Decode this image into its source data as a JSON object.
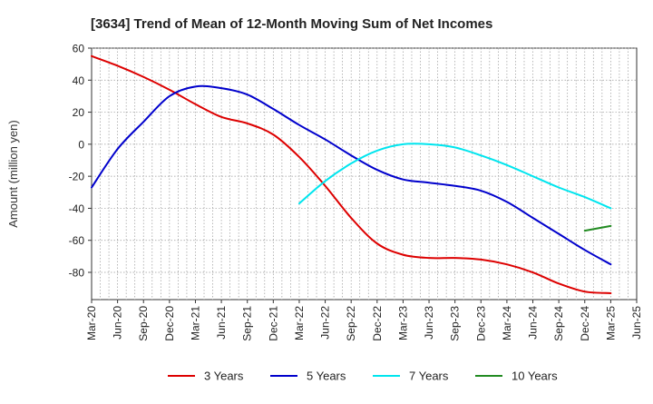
{
  "chart_data": {
    "type": "line",
    "title": "[3634]  Trend of Mean of 12-Month Moving Sum of Net Incomes",
    "ylabel": "Amount (million yen)",
    "xlabel": "",
    "ylim": [
      -97,
      60
    ],
    "yticks": [
      60,
      40,
      20,
      0,
      -20,
      -40,
      -60,
      -80
    ],
    "xticks": [
      "Mar-20",
      "Jun-20",
      "Sep-20",
      "Dec-20",
      "Mar-21",
      "Jun-21",
      "Sep-21",
      "Dec-21",
      "Mar-22",
      "Jun-22",
      "Sep-22",
      "Dec-22",
      "Mar-23",
      "Jun-23",
      "Sep-23",
      "Dec-23",
      "Mar-24",
      "Jun-24",
      "Sep-24",
      "Dec-24",
      "Mar-25",
      "Jun-25"
    ],
    "grid": true,
    "legend_position": "bottom",
    "series": [
      {
        "name": "3 Years",
        "color": "#dd0000",
        "points": [
          [
            "Mar-20",
            55
          ],
          [
            "Jun-20",
            49
          ],
          [
            "Sep-20",
            42
          ],
          [
            "Dec-20",
            34
          ],
          [
            "Mar-21",
            25
          ],
          [
            "Jun-21",
            17
          ],
          [
            "Sep-21",
            13
          ],
          [
            "Dec-21",
            6
          ],
          [
            "Mar-22",
            -8
          ],
          [
            "Jun-22",
            -26
          ],
          [
            "Sep-22",
            -46
          ],
          [
            "Dec-22",
            -62
          ],
          [
            "Mar-23",
            -69
          ],
          [
            "Jun-23",
            -71
          ],
          [
            "Sep-23",
            -71
          ],
          [
            "Dec-23",
            -72
          ],
          [
            "Mar-24",
            -75
          ],
          [
            "Jun-24",
            -80
          ],
          [
            "Sep-24",
            -87
          ],
          [
            "Dec-24",
            -92
          ],
          [
            "Mar-25",
            -93
          ]
        ]
      },
      {
        "name": "5 Years",
        "color": "#0000cc",
        "points": [
          [
            "Mar-20",
            -27
          ],
          [
            "Jun-20",
            -3
          ],
          [
            "Sep-20",
            14
          ],
          [
            "Dec-20",
            30
          ],
          [
            "Mar-21",
            36
          ],
          [
            "Jun-21",
            35
          ],
          [
            "Sep-21",
            31
          ],
          [
            "Dec-21",
            22
          ],
          [
            "Mar-22",
            12
          ],
          [
            "Jun-22",
            3
          ],
          [
            "Sep-22",
            -7
          ],
          [
            "Dec-22",
            -16
          ],
          [
            "Mar-23",
            -22
          ],
          [
            "Jun-23",
            -24
          ],
          [
            "Sep-23",
            -26
          ],
          [
            "Dec-23",
            -29
          ],
          [
            "Mar-24",
            -36
          ],
          [
            "Jun-24",
            -46
          ],
          [
            "Sep-24",
            -56
          ],
          [
            "Dec-24",
            -66
          ],
          [
            "Mar-25",
            -75
          ]
        ]
      },
      {
        "name": "7 Years",
        "color": "#00e5ee",
        "points": [
          [
            "Mar-22",
            -37
          ],
          [
            "Jun-22",
            -23
          ],
          [
            "Sep-22",
            -12
          ],
          [
            "Dec-22",
            -4
          ],
          [
            "Mar-23",
            0
          ],
          [
            "Jun-23",
            0
          ],
          [
            "Sep-23",
            -2
          ],
          [
            "Dec-23",
            -7
          ],
          [
            "Mar-24",
            -13
          ],
          [
            "Jun-24",
            -20
          ],
          [
            "Sep-24",
            -27
          ],
          [
            "Dec-24",
            -33
          ],
          [
            "Mar-25",
            -40
          ]
        ]
      },
      {
        "name": "10 Years",
        "color": "#228b22",
        "points": [
          [
            "Dec-24",
            -54
          ],
          [
            "Mar-25",
            -51
          ]
        ]
      }
    ]
  }
}
